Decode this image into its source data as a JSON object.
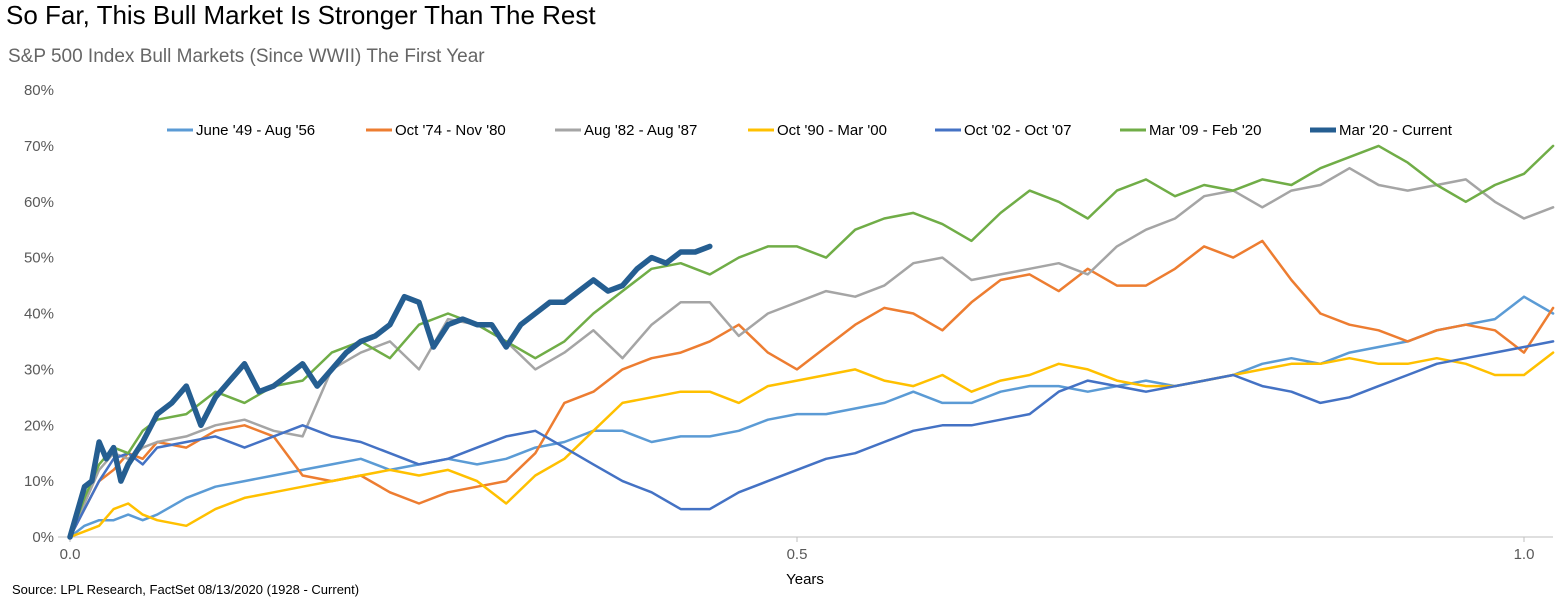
{
  "chart_data": {
    "type": "line",
    "title": "So Far, This Bull Market Is Stronger Than The Rest",
    "subtitle": "S&P 500 Index Bull Markets (Since WWII) The First Year",
    "xlabel": "Years",
    "ylabel": "",
    "xlim": [
      0,
      1.02
    ],
    "ylim": [
      0,
      80
    ],
    "x_ticks": [
      0.0,
      0.5,
      1.0
    ],
    "x_tick_labels": [
      "0.0",
      "0.5",
      "1.0"
    ],
    "y_ticks": [
      0,
      10,
      20,
      30,
      40,
      50,
      60,
      70,
      80
    ],
    "y_tick_labels": [
      "0%",
      "10%",
      "20%",
      "30%",
      "40%",
      "50%",
      "60%",
      "70%",
      "80%"
    ],
    "grid": false,
    "legend_position": "top",
    "source": "Source: LPL Research, FactSet 08/13/2020 (1928 - Current)",
    "series": [
      {
        "name": "June '49 - Aug '56",
        "color": "#5B9BD5",
        "width": 2.5,
        "x": [
          0,
          0.01,
          0.02,
          0.03,
          0.04,
          0.05,
          0.06,
          0.08,
          0.1,
          0.12,
          0.14,
          0.16,
          0.18,
          0.2,
          0.22,
          0.24,
          0.26,
          0.28,
          0.3,
          0.32,
          0.34,
          0.36,
          0.38,
          0.4,
          0.42,
          0.44,
          0.46,
          0.48,
          0.5,
          0.52,
          0.54,
          0.56,
          0.58,
          0.6,
          0.62,
          0.64,
          0.66,
          0.68,
          0.7,
          0.72,
          0.74,
          0.76,
          0.78,
          0.8,
          0.82,
          0.84,
          0.86,
          0.88,
          0.9,
          0.92,
          0.94,
          0.96,
          0.98,
          1.0,
          1.02
        ],
        "y": [
          0,
          2,
          3,
          3,
          4,
          3,
          4,
          7,
          9,
          10,
          11,
          12,
          13,
          14,
          12,
          13,
          14,
          13,
          14,
          16,
          17,
          19,
          19,
          17,
          18,
          18,
          19,
          21,
          22,
          22,
          23,
          24,
          26,
          24,
          24,
          26,
          27,
          27,
          26,
          27,
          28,
          27,
          28,
          29,
          31,
          32,
          31,
          33,
          34,
          35,
          37,
          38,
          39,
          43,
          40
        ]
      },
      {
        "name": "Oct '74 - Nov '80",
        "color": "#ED7D31",
        "width": 2.5,
        "x": [
          0,
          0.01,
          0.02,
          0.03,
          0.04,
          0.05,
          0.06,
          0.08,
          0.1,
          0.12,
          0.14,
          0.16,
          0.18,
          0.2,
          0.22,
          0.24,
          0.26,
          0.28,
          0.3,
          0.32,
          0.34,
          0.36,
          0.38,
          0.4,
          0.42,
          0.44,
          0.46,
          0.48,
          0.5,
          0.52,
          0.54,
          0.56,
          0.58,
          0.6,
          0.62,
          0.64,
          0.66,
          0.68,
          0.7,
          0.72,
          0.74,
          0.76,
          0.78,
          0.8,
          0.82,
          0.84,
          0.86,
          0.88,
          0.9,
          0.92,
          0.94,
          0.96,
          0.98,
          1.0,
          1.02
        ],
        "y": [
          0,
          5,
          10,
          12,
          15,
          14,
          17,
          16,
          19,
          20,
          18,
          11,
          10,
          11,
          8,
          6,
          8,
          9,
          10,
          15,
          24,
          26,
          30,
          32,
          33,
          35,
          38,
          33,
          30,
          34,
          38,
          41,
          40,
          37,
          42,
          46,
          47,
          44,
          48,
          45,
          45,
          48,
          52,
          50,
          53,
          46,
          40,
          38,
          37,
          35,
          37,
          38,
          37,
          33,
          41
        ]
      },
      {
        "name": "Aug '82 - Aug '87",
        "color": "#A5A5A5",
        "width": 2.5,
        "x": [
          0,
          0.01,
          0.02,
          0.03,
          0.04,
          0.05,
          0.06,
          0.08,
          0.1,
          0.12,
          0.14,
          0.16,
          0.18,
          0.2,
          0.22,
          0.24,
          0.26,
          0.28,
          0.3,
          0.32,
          0.34,
          0.36,
          0.38,
          0.4,
          0.42,
          0.44,
          0.46,
          0.48,
          0.5,
          0.52,
          0.54,
          0.56,
          0.58,
          0.6,
          0.62,
          0.64,
          0.66,
          0.68,
          0.7,
          0.72,
          0.74,
          0.76,
          0.78,
          0.8,
          0.82,
          0.84,
          0.86,
          0.88,
          0.9,
          0.92,
          0.94,
          0.96,
          0.98,
          1.0,
          1.02
        ],
        "y": [
          0,
          6,
          12,
          15,
          14,
          16,
          17,
          18,
          20,
          21,
          19,
          18,
          30,
          33,
          35,
          30,
          39,
          38,
          35,
          30,
          33,
          37,
          32,
          38,
          42,
          42,
          36,
          40,
          42,
          44,
          43,
          45,
          49,
          50,
          46,
          47,
          48,
          49,
          47,
          52,
          55,
          57,
          61,
          62,
          59,
          62,
          63,
          66,
          63,
          62,
          63,
          64,
          60,
          57,
          59
        ]
      },
      {
        "name": "Oct '90 - Mar '00",
        "color": "#FFC000",
        "width": 2.5,
        "x": [
          0,
          0.01,
          0.02,
          0.03,
          0.04,
          0.05,
          0.06,
          0.08,
          0.1,
          0.12,
          0.14,
          0.16,
          0.18,
          0.2,
          0.22,
          0.24,
          0.26,
          0.28,
          0.3,
          0.32,
          0.34,
          0.36,
          0.38,
          0.4,
          0.42,
          0.44,
          0.46,
          0.48,
          0.5,
          0.52,
          0.54,
          0.56,
          0.58,
          0.6,
          0.62,
          0.64,
          0.66,
          0.68,
          0.7,
          0.72,
          0.74,
          0.76,
          0.78,
          0.8,
          0.82,
          0.84,
          0.86,
          0.88,
          0.9,
          0.92,
          0.94,
          0.96,
          0.98,
          1.0,
          1.02
        ],
        "y": [
          0,
          1,
          2,
          5,
          6,
          4,
          3,
          2,
          5,
          7,
          8,
          9,
          10,
          11,
          12,
          11,
          12,
          10,
          6,
          11,
          14,
          19,
          24,
          25,
          26,
          26,
          24,
          27,
          28,
          29,
          30,
          28,
          27,
          29,
          26,
          28,
          29,
          31,
          30,
          28,
          27,
          27,
          28,
          29,
          30,
          31,
          31,
          32,
          31,
          31,
          32,
          31,
          29,
          29,
          33
        ]
      },
      {
        "name": "Oct '02 - Oct '07",
        "color": "#4472C4",
        "width": 2.5,
        "x": [
          0,
          0.01,
          0.02,
          0.03,
          0.04,
          0.05,
          0.06,
          0.08,
          0.1,
          0.12,
          0.14,
          0.16,
          0.18,
          0.2,
          0.22,
          0.24,
          0.26,
          0.28,
          0.3,
          0.32,
          0.34,
          0.36,
          0.38,
          0.4,
          0.42,
          0.44,
          0.46,
          0.48,
          0.5,
          0.52,
          0.54,
          0.56,
          0.58,
          0.6,
          0.62,
          0.64,
          0.66,
          0.68,
          0.7,
          0.72,
          0.74,
          0.76,
          0.78,
          0.8,
          0.82,
          0.84,
          0.86,
          0.88,
          0.9,
          0.92,
          0.94,
          0.96,
          0.98,
          1.0,
          1.02
        ],
        "y": [
          0,
          5,
          10,
          14,
          15,
          13,
          16,
          17,
          18,
          16,
          18,
          20,
          18,
          17,
          15,
          13,
          14,
          16,
          18,
          19,
          16,
          13,
          10,
          8,
          5,
          5,
          8,
          10,
          12,
          14,
          15,
          17,
          19,
          20,
          20,
          21,
          22,
          26,
          28,
          27,
          26,
          27,
          28,
          29,
          27,
          26,
          24,
          25,
          27,
          29,
          31,
          32,
          33,
          34,
          35
        ]
      },
      {
        "name": "Mar '09 - Feb '20",
        "color": "#70AD47",
        "width": 2.5,
        "x": [
          0,
          0.01,
          0.02,
          0.03,
          0.04,
          0.05,
          0.06,
          0.08,
          0.1,
          0.12,
          0.14,
          0.16,
          0.18,
          0.2,
          0.22,
          0.24,
          0.26,
          0.28,
          0.3,
          0.32,
          0.34,
          0.36,
          0.38,
          0.4,
          0.42,
          0.44,
          0.46,
          0.48,
          0.5,
          0.52,
          0.54,
          0.56,
          0.58,
          0.6,
          0.62,
          0.64,
          0.66,
          0.68,
          0.7,
          0.72,
          0.74,
          0.76,
          0.78,
          0.8,
          0.82,
          0.84,
          0.86,
          0.88,
          0.9,
          0.92,
          0.94,
          0.96,
          0.98,
          1.0,
          1.02
        ],
        "y": [
          0,
          7,
          13,
          16,
          15,
          19,
          21,
          22,
          26,
          24,
          27,
          28,
          33,
          35,
          32,
          38,
          40,
          38,
          35,
          32,
          35,
          40,
          44,
          48,
          49,
          47,
          50,
          52,
          52,
          50,
          55,
          57,
          58,
          56,
          53,
          58,
          62,
          60,
          57,
          62,
          64,
          61,
          63,
          62,
          64,
          63,
          66,
          68,
          70,
          67,
          63,
          60,
          63,
          65,
          70
        ]
      },
      {
        "name": "Mar '20 - Current",
        "color": "#255E91",
        "width": 5.5,
        "x": [
          0,
          0.01,
          0.015,
          0.02,
          0.025,
          0.03,
          0.035,
          0.04,
          0.05,
          0.06,
          0.07,
          0.08,
          0.09,
          0.1,
          0.11,
          0.12,
          0.13,
          0.14,
          0.15,
          0.16,
          0.17,
          0.18,
          0.19,
          0.2,
          0.21,
          0.22,
          0.23,
          0.24,
          0.25,
          0.26,
          0.27,
          0.28,
          0.29,
          0.3,
          0.31,
          0.32,
          0.33,
          0.34,
          0.35,
          0.36,
          0.37,
          0.38,
          0.39,
          0.4,
          0.41,
          0.42,
          0.43,
          0.44
        ],
        "y": [
          0,
          9,
          10,
          17,
          14,
          16,
          10,
          13,
          17,
          22,
          24,
          27,
          20,
          25,
          28,
          31,
          26,
          27,
          29,
          31,
          27,
          30,
          33,
          35,
          36,
          38,
          43,
          42,
          34,
          38,
          39,
          38,
          38,
          34,
          38,
          40,
          42,
          42,
          44,
          46,
          44,
          45,
          48,
          50,
          49,
          51,
          51,
          52
        ]
      }
    ]
  }
}
